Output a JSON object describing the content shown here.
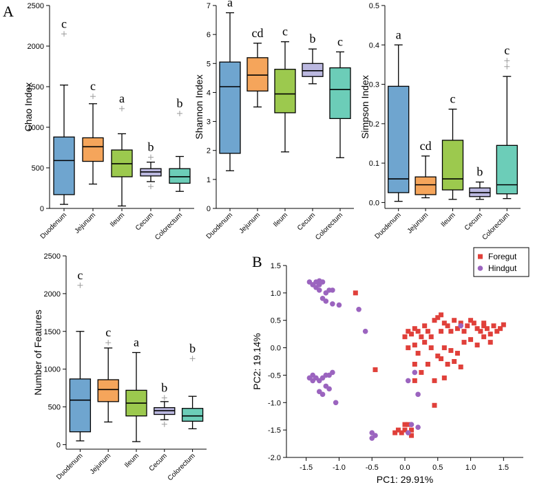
{
  "panel_labels": {
    "a": "A",
    "b": "B"
  },
  "colors": {
    "Duodenum": "#6fa5cf",
    "Jejunum": "#f5a55b",
    "Ileum": "#9cc94e",
    "Cecum": "#bbb8e0",
    "Colorectum": "#6ccdb8",
    "outlier": "#9a9a9a",
    "Foregut": "#e0403a",
    "Hindgut": "#9b64bf"
  },
  "chart_data": [
    {
      "id": "chao",
      "type": "box",
      "title": "",
      "ylabel": "Chao Index",
      "ylim": [
        0,
        2500
      ],
      "ticks": [
        0,
        500,
        1000,
        1500,
        2000,
        2500
      ],
      "categories": [
        "Duodenum",
        "Jejunum",
        "Ileum",
        "Cecum",
        "Colorectum"
      ],
      "boxes": [
        {
          "min": 50,
          "q1": 170,
          "median": 590,
          "q3": 880,
          "max": 1520,
          "outliers": [
            2150
          ],
          "letter": "c"
        },
        {
          "min": 300,
          "q1": 580,
          "median": 760,
          "q3": 870,
          "max": 1290,
          "outliers": [
            1380
          ],
          "letter": "c"
        },
        {
          "min": 30,
          "q1": 390,
          "median": 550,
          "q3": 720,
          "max": 920,
          "outliers": [
            1230
          ],
          "letter": "a"
        },
        {
          "min": 330,
          "q1": 400,
          "median": 450,
          "q3": 490,
          "max": 570,
          "outliers": [
            630,
            270
          ],
          "letter": "b"
        },
        {
          "min": 210,
          "q1": 310,
          "median": 390,
          "q3": 490,
          "max": 640,
          "outliers": [
            1170
          ],
          "letter": "b"
        }
      ]
    },
    {
      "id": "shannon",
      "type": "box",
      "title": "",
      "ylabel": "Shannon Index",
      "ylim": [
        0,
        7
      ],
      "ticks": [
        0,
        1,
        2,
        3,
        4,
        5,
        6,
        7
      ],
      "categories": [
        "Duodenum",
        "Jejunum",
        "Ileum",
        "Cecum",
        "Colorectum"
      ],
      "boxes": [
        {
          "min": 1.3,
          "q1": 1.9,
          "median": 4.2,
          "q3": 5.05,
          "max": 6.75,
          "outliers": [],
          "letter": "a"
        },
        {
          "min": 3.5,
          "q1": 4.05,
          "median": 4.6,
          "q3": 5.2,
          "max": 5.7,
          "outliers": [],
          "letter": "cd"
        },
        {
          "min": 1.95,
          "q1": 3.3,
          "median": 3.95,
          "q3": 4.8,
          "max": 5.75,
          "outliers": [],
          "letter": "c"
        },
        {
          "min": 4.3,
          "q1": 4.55,
          "median": 4.75,
          "q3": 5.0,
          "max": 5.5,
          "outliers": [],
          "letter": "b"
        },
        {
          "min": 1.75,
          "q1": 3.1,
          "median": 4.1,
          "q3": 4.85,
          "max": 5.4,
          "outliers": [],
          "letter": "c"
        }
      ]
    },
    {
      "id": "simpson",
      "type": "box",
      "title": "",
      "ylabel": "Simpson Index",
      "ylim": [
        -0.015,
        0.5
      ],
      "ticks": [
        0.0,
        0.1,
        0.2,
        0.3,
        0.4,
        0.5
      ],
      "tick_labels": [
        "0.0",
        "0.1",
        "0.2",
        "0.3",
        "0.4",
        "0.5"
      ],
      "categories": [
        "Duodenum",
        "Jejunum",
        "Ileum",
        "Cecum",
        "Colorectum"
      ],
      "boxes": [
        {
          "min": 0.003,
          "q1": 0.025,
          "median": 0.06,
          "q3": 0.295,
          "max": 0.4,
          "outliers": [],
          "letter": "a"
        },
        {
          "min": 0.012,
          "q1": 0.02,
          "median": 0.045,
          "q3": 0.065,
          "max": 0.118,
          "outliers": [],
          "letter": "cd"
        },
        {
          "min": 0.008,
          "q1": 0.032,
          "median": 0.06,
          "q3": 0.158,
          "max": 0.237,
          "outliers": [],
          "letter": "c"
        },
        {
          "min": 0.008,
          "q1": 0.015,
          "median": 0.025,
          "q3": 0.037,
          "max": 0.052,
          "outliers": [],
          "letter": "b"
        },
        {
          "min": 0.01,
          "q1": 0.022,
          "median": 0.045,
          "q3": 0.145,
          "max": 0.32,
          "outliers": [
            0.345,
            0.36
          ],
          "letter": "c"
        }
      ]
    },
    {
      "id": "features",
      "type": "box",
      "title": "",
      "ylabel": "Number of Features",
      "ylim": [
        -60,
        2500
      ],
      "ticks": [
        0,
        500,
        1000,
        1500,
        2000,
        2500
      ],
      "categories": [
        "Duodenum",
        "Jejunum",
        "Ileum",
        "Cecum",
        "Colorectum"
      ],
      "boxes": [
        {
          "min": 50,
          "q1": 170,
          "median": 590,
          "q3": 870,
          "max": 1500,
          "outliers": [
            2110
          ],
          "letter": "c"
        },
        {
          "min": 300,
          "q1": 570,
          "median": 730,
          "q3": 860,
          "max": 1280,
          "outliers": [
            1350
          ],
          "letter": "c"
        },
        {
          "min": 40,
          "q1": 380,
          "median": 550,
          "q3": 720,
          "max": 1220,
          "outliers": [],
          "letter": "a"
        },
        {
          "min": 330,
          "q1": 400,
          "median": 450,
          "q3": 490,
          "max": 570,
          "outliers": [
            620,
            270
          ],
          "letter": "b"
        },
        {
          "min": 210,
          "q1": 310,
          "median": 380,
          "q3": 480,
          "max": 640,
          "outliers": [
            1140
          ],
          "letter": "b"
        }
      ]
    },
    {
      "id": "pcoa",
      "type": "scatter",
      "title": "",
      "xlabel": "PC1: 29.91%",
      "ylabel": "PC2: 19.14%",
      "xlim": [
        -1.8,
        1.8
      ],
      "ylim": [
        -2.0,
        1.5
      ],
      "xticks": [
        -1.5,
        -1.0,
        -0.5,
        0.0,
        0.5,
        1.0,
        1.5
      ],
      "xtick_labels": [
        "-1.5",
        "-1.0",
        "-0.5",
        "0.0",
        "0.5",
        "1.0",
        "1.5"
      ],
      "yticks": [
        -2.0,
        -1.5,
        -1.0,
        -0.5,
        0.0,
        0.5,
        1.0,
        1.5
      ],
      "ytick_labels": [
        "-2.0",
        "-1.5",
        "-1.0",
        "-0.5",
        "0.0",
        "0.5",
        "1.0",
        "1.5"
      ],
      "legend_position": "top-right",
      "series": [
        {
          "name": "Foregut",
          "marker": "square",
          "points": [
            [
              -0.75,
              1.0
            ],
            [
              -0.45,
              -0.4
            ],
            [
              0.0,
              0.2
            ],
            [
              0.05,
              0.3
            ],
            [
              0.1,
              0.25
            ],
            [
              0.15,
              0.35
            ],
            [
              0.2,
              0.3
            ],
            [
              0.25,
              0.2
            ],
            [
              0.3,
              0.4
            ],
            [
              0.35,
              0.3
            ],
            [
              0.4,
              0.2
            ],
            [
              0.45,
              0.5
            ],
            [
              0.5,
              0.55
            ],
            [
              0.55,
              0.3
            ],
            [
              0.6,
              0.45
            ],
            [
              0.65,
              0.4
            ],
            [
              0.7,
              0.3
            ],
            [
              0.75,
              0.5
            ],
            [
              0.8,
              0.35
            ],
            [
              0.85,
              0.45
            ],
            [
              0.9,
              0.3
            ],
            [
              0.95,
              0.4
            ],
            [
              1.0,
              0.5
            ],
            [
              1.05,
              0.45
            ],
            [
              1.1,
              0.35
            ],
            [
              1.15,
              0.3
            ],
            [
              1.2,
              0.4
            ],
            [
              1.25,
              0.35
            ],
            [
              1.3,
              0.25
            ],
            [
              1.35,
              0.4
            ],
            [
              1.4,
              0.3
            ],
            [
              1.45,
              0.35
            ],
            [
              1.5,
              0.42
            ],
            [
              1.2,
              0.2
            ],
            [
              1.3,
              0.1
            ],
            [
              1.1,
              0.05
            ],
            [
              0.3,
              0.1
            ],
            [
              0.15,
              0.05
            ],
            [
              0.05,
              0.0
            ],
            [
              0.4,
              0.0
            ],
            [
              0.6,
              0.0
            ],
            [
              0.7,
              -0.05
            ],
            [
              0.8,
              -0.1
            ],
            [
              0.9,
              0.1
            ],
            [
              1.0,
              0.15
            ],
            [
              0.2,
              -0.1
            ],
            [
              0.5,
              -0.15
            ],
            [
              0.35,
              -0.3
            ],
            [
              0.55,
              -0.2
            ],
            [
              0.65,
              -0.3
            ],
            [
              0.85,
              -0.35
            ],
            [
              0.75,
              -0.25
            ],
            [
              0.15,
              -0.3
            ],
            [
              0.25,
              -0.45
            ],
            [
              0.45,
              -0.6
            ],
            [
              0.6,
              -0.55
            ],
            [
              0.15,
              -0.6
            ],
            [
              0.45,
              -1.05
            ],
            [
              0.0,
              -1.4
            ],
            [
              0.05,
              -1.4
            ],
            [
              0.1,
              -1.5
            ],
            [
              -0.1,
              -1.5
            ],
            [
              -0.15,
              -1.55
            ],
            [
              -0.05,
              -1.55
            ],
            [
              0.1,
              -1.6
            ],
            [
              0.0,
              -1.5
            ],
            [
              0.55,
              0.6
            ],
            [
              1.2,
              0.45
            ]
          ]
        },
        {
          "name": "Hindgut",
          "marker": "circle",
          "points": [
            [
              -1.45,
              1.2
            ],
            [
              -1.4,
              1.15
            ],
            [
              -1.35,
              1.2
            ],
            [
              -1.3,
              1.15
            ],
            [
              -1.25,
              1.2
            ],
            [
              -1.35,
              1.1
            ],
            [
              -1.3,
              1.05
            ],
            [
              -1.2,
              1.0
            ],
            [
              -1.15,
              1.05
            ],
            [
              -1.1,
              1.05
            ],
            [
              -1.25,
              0.9
            ],
            [
              -1.2,
              0.85
            ],
            [
              -1.1,
              0.8
            ],
            [
              -1.0,
              0.78
            ],
            [
              -1.3,
              1.22
            ],
            [
              -0.7,
              0.7
            ],
            [
              -0.6,
              0.3
            ],
            [
              -1.45,
              -0.55
            ],
            [
              -1.4,
              -0.5
            ],
            [
              -1.35,
              -0.55
            ],
            [
              -1.3,
              -0.6
            ],
            [
              -1.25,
              -0.55
            ],
            [
              -1.2,
              -0.5
            ],
            [
              -1.15,
              -0.5
            ],
            [
              -1.1,
              -0.45
            ],
            [
              -1.2,
              -0.7
            ],
            [
              -1.3,
              -0.8
            ],
            [
              -1.25,
              -0.85
            ],
            [
              -1.15,
              -0.75
            ],
            [
              -1.05,
              -1.0
            ],
            [
              -1.4,
              -0.6
            ],
            [
              -0.5,
              -1.55
            ],
            [
              -0.45,
              -1.6
            ],
            [
              -0.5,
              -1.65
            ],
            [
              0.05,
              -0.6
            ],
            [
              0.15,
              -0.45
            ],
            [
              0.2,
              -0.85
            ],
            [
              0.1,
              -1.4
            ],
            [
              0.2,
              -1.45
            ],
            [
              0.05,
              -1.55
            ],
            [
              0.85,
              0.4
            ]
          ]
        }
      ]
    }
  ]
}
